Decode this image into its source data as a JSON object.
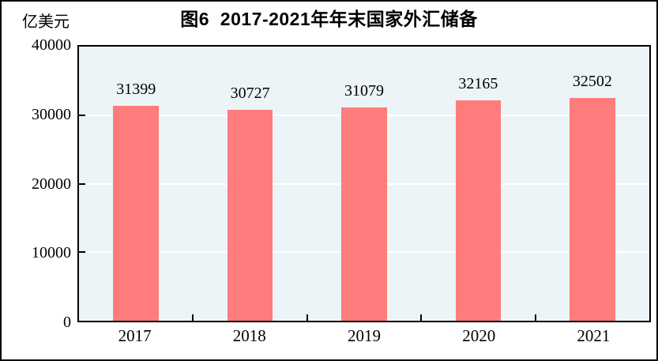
{
  "figure": {
    "title": "图6  2017-2021年年末国家外汇储备",
    "unit_label": "亿美元"
  },
  "chart_data": {
    "type": "bar",
    "title": "图6 2017-2021年年末国家外汇储备",
    "categories": [
      "2017",
      "2018",
      "2019",
      "2020",
      "2021"
    ],
    "values": [
      31399,
      30727,
      31079,
      32165,
      32502
    ],
    "data_labels": [
      31399,
      30727,
      31079,
      32165,
      32502
    ],
    "xlabel": "",
    "ylabel": "亿美元",
    "ylim": [
      0,
      40000
    ],
    "yticks": [
      0,
      10000,
      20000,
      30000,
      40000
    ],
    "grid": "horizontal",
    "legend": "none",
    "colors": {
      "bar_fill": "#ff7c7c",
      "plot_background": "#edf4f7",
      "gridline": "#ffffff",
      "axis": "#000000",
      "text": "#000000"
    }
  }
}
